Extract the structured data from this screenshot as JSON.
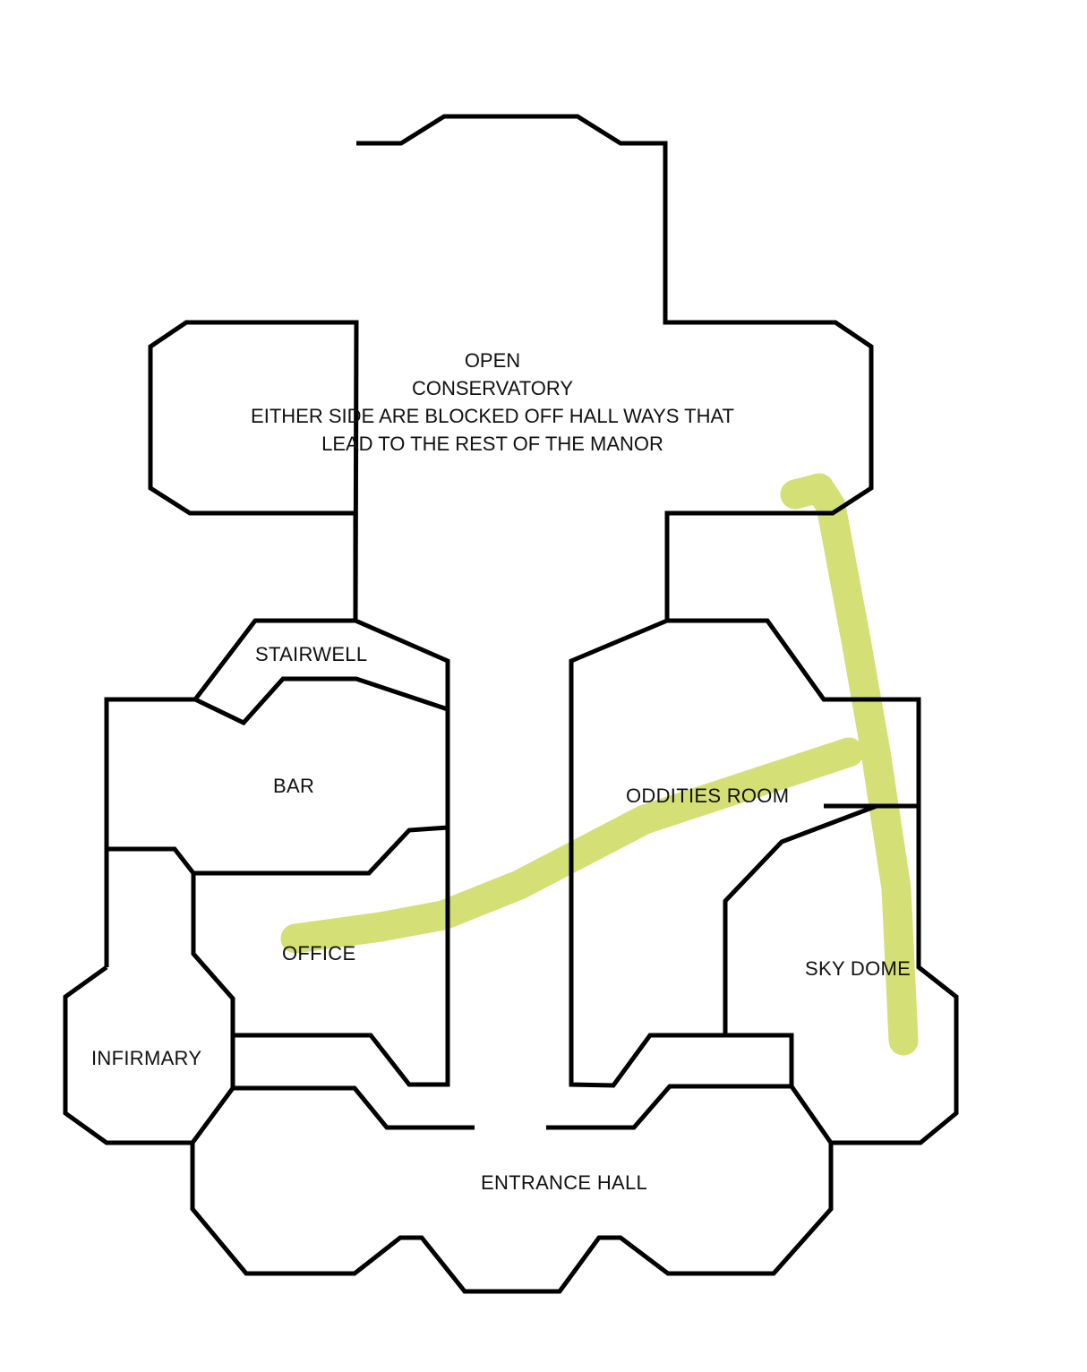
{
  "colors": {
    "wall": "#000000",
    "route": "#d4df76",
    "background": "#ffffff"
  },
  "rooms": {
    "conservatory": {
      "lines": [
        "OPEN",
        "CONSERVATORY",
        "EITHER SIDE ARE BLOCKED OFF HALL WAYS THAT",
        "LEAD TO THE REST OF THE MANOR"
      ]
    },
    "stairwell": "STAIRWELL",
    "bar": "BAR",
    "oddities_room": "ODDITIES ROOM",
    "office": "OFFICE",
    "sky_dome": "SKY DOME",
    "infirmary": "INFIRMARY",
    "entrance_hall": "ENTRANCE HALL"
  }
}
